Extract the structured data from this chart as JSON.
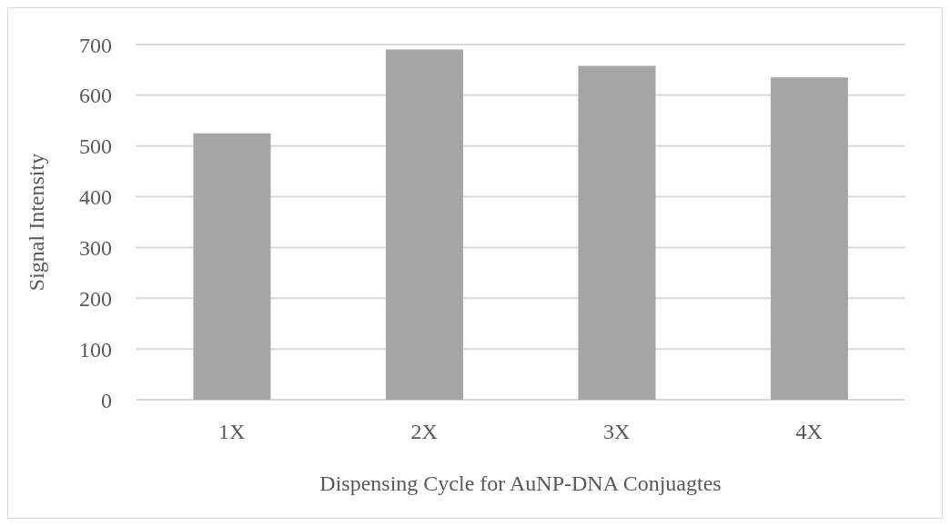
{
  "chart_data": {
    "type": "bar",
    "xlabel": "Dispensing Cycle for AuNP-DNA Conjuagtes",
    "ylabel": "Signal Intensity",
    "categories": [
      "1X",
      "2X",
      "3X",
      "4X"
    ],
    "values": [
      525,
      690,
      658,
      635
    ],
    "color": "#a5a5a5",
    "ylim": [
      0,
      700
    ],
    "yticks": [
      0,
      100,
      200,
      300,
      400,
      500,
      600,
      700
    ],
    "grid": "y"
  }
}
